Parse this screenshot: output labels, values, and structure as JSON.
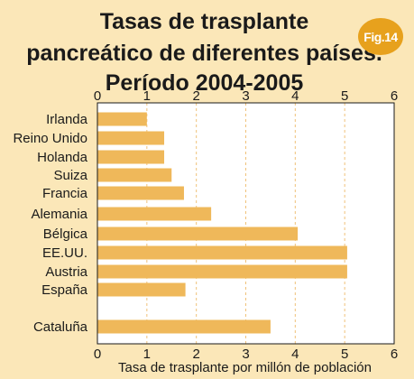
{
  "title_lines": [
    "Tasas de trasplante",
    "pancreático de diferentes países.",
    "Período 2004-2005"
  ],
  "figure_label": "Fig.14",
  "colors": {
    "background": "#fbe7b8",
    "plot_background": "#ffffff",
    "bar": "#efb85a",
    "badge": "#e7a11d",
    "grid": "#f0c27a"
  },
  "chart_data": {
    "type": "bar",
    "orientation": "horizontal",
    "title": "Tasas de trasplante pancreático de diferentes países. Período 2004-2005",
    "xlabel": "Tasa de trasplante por millón de población",
    "ylabel": "",
    "xlim": [
      0,
      6
    ],
    "xticks": [
      0,
      1,
      2,
      3,
      4,
      5,
      6
    ],
    "grid": "vertical dashed",
    "categories": [
      "Irlanda",
      "Reino Unido",
      "Holanda",
      "Suiza",
      "Francia",
      "Alemania",
      "Bélgica",
      "EE.UU.",
      "Austria",
      "España",
      "Cataluña"
    ],
    "values": [
      1.0,
      1.35,
      1.35,
      1.5,
      1.75,
      2.3,
      4.05,
      5.05,
      5.05,
      1.78,
      3.5
    ]
  }
}
